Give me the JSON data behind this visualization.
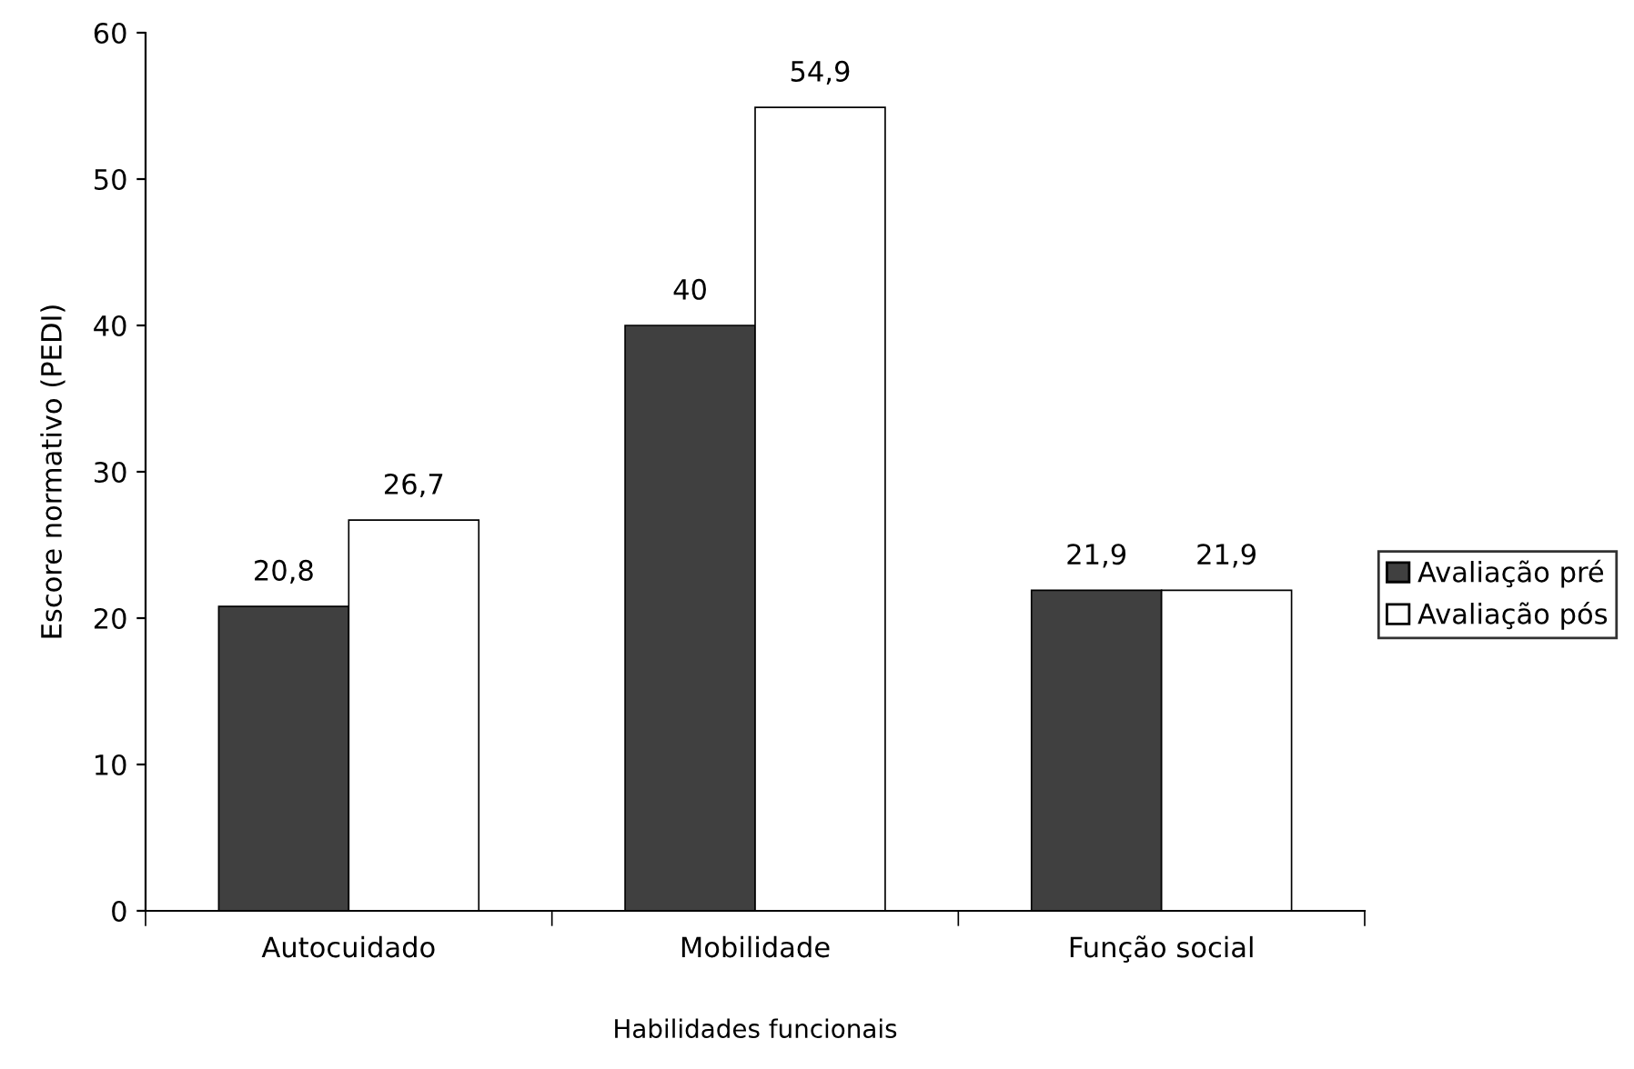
{
  "chart_data": {
    "type": "bar",
    "xlabel": "Habilidades funcionais",
    "ylabel": "Escore normativo (PEDI)",
    "categories": [
      "Autocuidado",
      "Mobilidade",
      "Função social"
    ],
    "series": [
      {
        "name": "Avaliação pré",
        "color": "#404040",
        "values": [
          20.8,
          40,
          21.9
        ],
        "value_labels": [
          "20,8",
          "40",
          "21,9"
        ]
      },
      {
        "name": "Avaliação pós",
        "color": "#ffffff",
        "values": [
          26.7,
          54.9,
          21.9
        ],
        "value_labels": [
          "26,7",
          "54,9",
          "21,9"
        ]
      }
    ],
    "ylim": [
      0,
      60
    ],
    "yticks": [
      0,
      10,
      20,
      30,
      40,
      50,
      60
    ],
    "grid": false,
    "legend": "right"
  }
}
